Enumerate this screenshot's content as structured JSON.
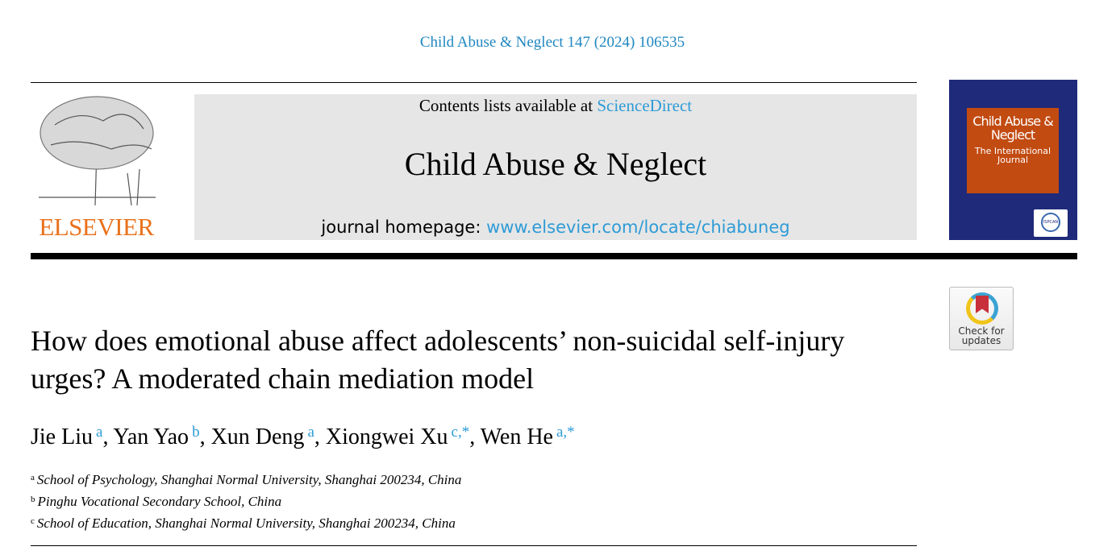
{
  "journal_ref": "Child Abuse & Neglect 147 (2024) 106535",
  "publisher_logo": "ELSEVIER",
  "header": {
    "contents_prefix": "Contents lists available at ",
    "contents_link": "ScienceDirect",
    "journal_title": "Child Abuse & Neglect",
    "homepage_prefix": "journal homepage: ",
    "homepage_link": "www.elsevier.com/locate/chiabuneg"
  },
  "cover": {
    "title": "Child Abuse & Neglect",
    "subtitle": "The International Journal",
    "badge": "ISPCAN"
  },
  "crossmark": {
    "label": "Check for updates"
  },
  "title": "How does emotional abuse affect adolescents’ non-suicidal self-injury urges? A moderated chain mediation model",
  "authors": [
    {
      "name": "Jie Liu",
      "sup": "a"
    },
    {
      "name": "Yan Yao",
      "sup": "b"
    },
    {
      "name": "Xun Deng",
      "sup": "a"
    },
    {
      "name": "Xiongwei Xu",
      "sup": "c,*"
    },
    {
      "name": "Wen He",
      "sup": "a,*"
    }
  ],
  "affiliations": [
    {
      "key": "a",
      "text": "School of Psychology, Shanghai Normal University, Shanghai 200234, China"
    },
    {
      "key": "b",
      "text": "Pinghu Vocational Secondary School, China"
    },
    {
      "key": "c",
      "text": "School of Education, Shanghai Normal University, Shanghai 200234, China"
    }
  ],
  "colors": {
    "link": "#2e9bd6",
    "elsevier_orange": "#e9711c",
    "cover_navy": "#1f2a7a",
    "cover_orange": "#c24b12"
  }
}
